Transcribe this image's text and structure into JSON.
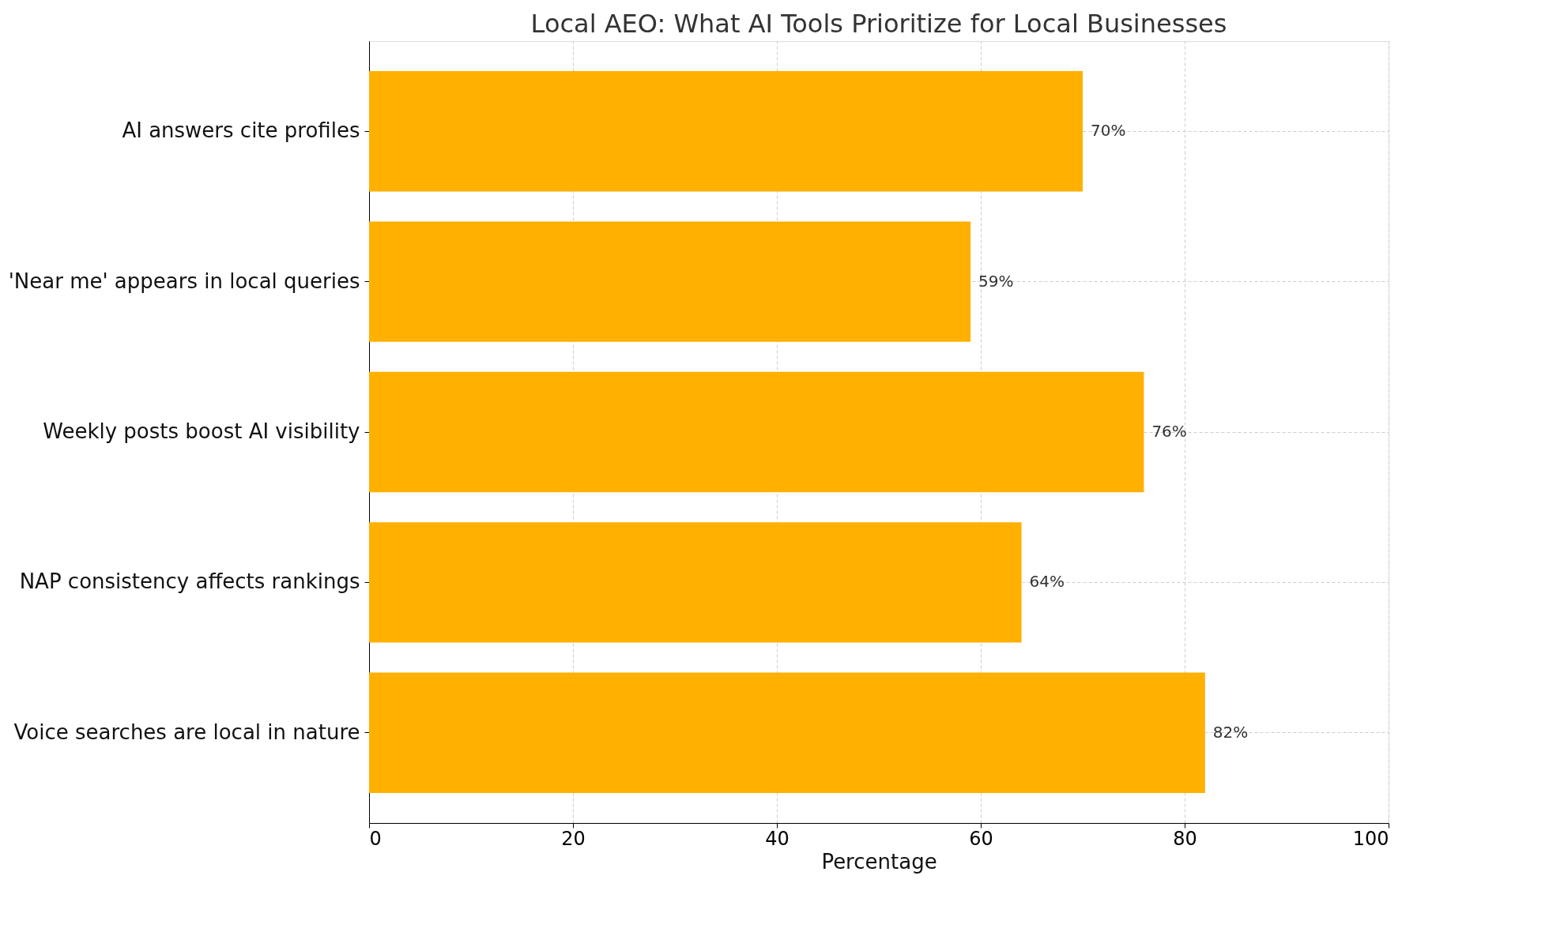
{
  "chart_data": {
    "type": "bar",
    "orientation": "horizontal",
    "title": "Local AEO: What AI Tools Prioritize for Local Businesses",
    "xlabel": "Percentage",
    "categories": [
      "AI answers cite profiles",
      "'Near me' appears in local queries",
      "Weekly posts boost AI visibility",
      "NAP consistency affects rankings",
      "Voice searches are local in nature"
    ],
    "values": [
      70,
      59,
      76,
      64,
      82
    ],
    "value_labels": [
      "70%",
      "59%",
      "76%",
      "64%",
      "82%"
    ],
    "color": "#ffb000",
    "xlim": [
      0,
      100
    ],
    "xticks": [
      0,
      20,
      40,
      60,
      80,
      100
    ],
    "grid": true
  }
}
